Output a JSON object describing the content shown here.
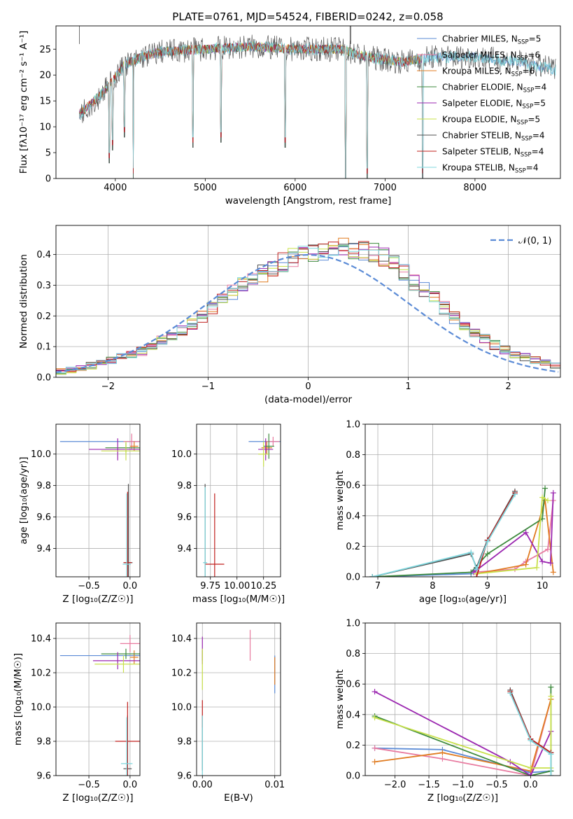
{
  "title": "PLATE=0761, MJD=54524, FIBERID=0242, z=0.058",
  "colors": {
    "chabrier_miles": "#5b8bd6",
    "salpeter_miles": "#e87ba0",
    "kroupa_miles": "#e07b20",
    "chabrier_elodie": "#3d8a3d",
    "salpeter_elodie": "#9b27b0",
    "kroupa_elodie": "#c8e04a",
    "chabrier_stelib": "#505050",
    "salpeter_stelib": "#c0201e",
    "kroupa_stelib": "#7fd7de",
    "normal_curve": "#5b8bd6"
  },
  "chart_data": [
    {
      "id": "spectrum",
      "type": "line",
      "xlabel": "wavelength [Angstrom, rest frame]",
      "ylabel": "Flux [fλ10⁻¹⁷ erg cm⁻² s⁻¹ A⁻¹]",
      "xlim": [
        3340,
        8950
      ],
      "ylim": [
        0,
        29.5
      ],
      "xticks": [
        4000,
        5000,
        6000,
        7000,
        8000
      ],
      "yticks": [
        0,
        5,
        10,
        15,
        20,
        25
      ],
      "legend_position": "top-right",
      "legend": [
        {
          "text": "Chabrier MILES, N",
          "sub": "SSP",
          "suffix": "=5"
        },
        {
          "text": "Salpeter MILES, N",
          "sub": "SSP",
          "suffix": "=6"
        },
        {
          "text": "Kroupa MILES, N",
          "sub": "SSP",
          "suffix": "=6"
        },
        {
          "text": "Chabrier ELODIE, N",
          "sub": "SSP",
          "suffix": "=4"
        },
        {
          "text": "Salpeter ELODIE, N",
          "sub": "SSP",
          "suffix": "=5"
        },
        {
          "text": "Kroupa ELODIE, N",
          "sub": "SSP",
          "suffix": "=5"
        },
        {
          "text": "Chabrier STELIB, N",
          "sub": "SSP",
          "suffix": "=4"
        },
        {
          "text": "Salpeter STELIB, N",
          "sub": "SSP",
          "suffix": "=4"
        },
        {
          "text": "Kroupa STELIB, N",
          "sub": "SSP",
          "suffix": "=4"
        }
      ],
      "continuum": [
        [
          3600,
          12.5
        ],
        [
          3700,
          14
        ],
        [
          3800,
          15.5
        ],
        [
          3900,
          17.5
        ],
        [
          4000,
          19.5
        ],
        [
          4100,
          22
        ],
        [
          4300,
          23.5
        ],
        [
          4500,
          24.5
        ],
        [
          5000,
          25
        ],
        [
          5500,
          25.5
        ],
        [
          6000,
          25
        ],
        [
          6500,
          25
        ],
        [
          6800,
          23.5
        ],
        [
          7000,
          23
        ],
        [
          7200,
          22.5
        ],
        [
          7500,
          23.5
        ],
        [
          8000,
          23.5
        ],
        [
          8500,
          22.5
        ],
        [
          8900,
          21
        ]
      ],
      "absorption_lines": [
        [
          3934,
          3
        ],
        [
          3969,
          5.5
        ],
        [
          4102,
          8
        ],
        [
          4200,
          0
        ],
        [
          4861,
          6
        ],
        [
          5176,
          7
        ],
        [
          5890,
          6
        ],
        [
          6563,
          -4
        ],
        [
          6800,
          0
        ],
        [
          7420,
          0
        ]
      ]
    },
    {
      "id": "residuals",
      "type": "step",
      "xlabel": "(data-model)/error",
      "ylabel": "Normed distribution",
      "xlim": [
        -2.52,
        2.52
      ],
      "ylim": [
        0,
        0.495
      ],
      "xticks": [
        -2,
        -1,
        0,
        1,
        2
      ],
      "xtick_labels": [
        "−2",
        "−1",
        "0",
        "1",
        "2"
      ],
      "yticks": [
        0.0,
        0.1,
        0.2,
        0.3,
        0.4
      ],
      "ytick_labels": [
        "0.0",
        "0.1",
        "0.2",
        "0.3",
        "0.4"
      ],
      "legend_label": "𝒩(0, 1)",
      "legend_position": "top-right",
      "envelope": [
        0.02,
        0.025,
        0.03,
        0.038,
        0.045,
        0.055,
        0.065,
        0.075,
        0.085,
        0.1,
        0.12,
        0.135,
        0.155,
        0.175,
        0.2,
        0.225,
        0.25,
        0.275,
        0.3,
        0.32,
        0.34,
        0.36,
        0.375,
        0.39,
        0.4,
        0.41,
        0.415,
        0.42,
        0.42,
        0.42,
        0.415,
        0.405,
        0.39,
        0.37,
        0.34,
        0.31,
        0.285,
        0.255,
        0.225,
        0.195,
        0.17,
        0.145,
        0.125,
        0.105,
        0.09,
        0.075,
        0.065,
        0.055,
        0.045,
        0.04
      ]
    },
    {
      "id": "age-vs-z",
      "type": "errorbar",
      "xlabel": "Z [log₁₀(Z/Z☉)]",
      "ylabel": "age  [log₁₀(age/yr)]",
      "xlim": [
        -0.9,
        0.12
      ],
      "ylim": [
        9.22,
        10.19
      ],
      "xticks": [
        -0.5,
        0.0
      ],
      "xtick_labels": [
        "−0.5",
        "0.0"
      ],
      "yticks": [
        9.4,
        9.6,
        9.8,
        10.0
      ],
      "yticklabels": [
        "9.4",
        "9.6",
        "9.8",
        "10.0"
      ],
      "points": [
        {
          "c": "chabrier_miles",
          "x": 0.0,
          "xerr": 0.85,
          "y": 10.08,
          "yerr": 0.0
        },
        {
          "c": "salpeter_miles",
          "x": 0.02,
          "xerr": 0.1,
          "y": 10.08,
          "yerr": 0.05
        },
        {
          "c": "kroupa_miles",
          "x": 0.05,
          "xerr": 0.05,
          "y": 10.05,
          "yerr": 0.03
        },
        {
          "c": "chabrier_elodie",
          "x": -0.05,
          "xerr": 0.25,
          "y": 10.04,
          "yerr": 0.03
        },
        {
          "c": "salpeter_elodie",
          "x": -0.15,
          "xerr": 0.35,
          "y": 10.03,
          "yerr": 0.07
        },
        {
          "c": "kroupa_elodie",
          "x": -0.05,
          "xerr": 0.3,
          "y": 10.02,
          "yerr": 0.06
        },
        {
          "c": "chabrier_stelib",
          "x": -0.02,
          "xerr": 0.05,
          "y": 9.31,
          "yerr": 0.5
        },
        {
          "c": "salpeter_stelib",
          "x": -0.03,
          "xerr": 0.05,
          "y": 9.31,
          "yerr": 0.45
        },
        {
          "c": "kroupa_stelib",
          "x": -0.04,
          "xerr": 0.05,
          "y": 9.3,
          "yerr": 0.45
        }
      ]
    },
    {
      "id": "age-vs-mass",
      "type": "errorbar",
      "xlabel": "mass [log₁₀(M/M☉)]",
      "ylabel": "",
      "xlim": [
        9.62,
        10.41
      ],
      "ylim": [
        9.22,
        10.19
      ],
      "xticks": [
        9.75,
        10.0,
        10.25
      ],
      "xtick_labels": [
        "9.75",
        "10.00",
        "10.25"
      ],
      "yticks": [
        9.4,
        9.6,
        9.8,
        10.0
      ],
      "yticklabels": [
        "9.4",
        "9.6",
        "9.8",
        "10.0"
      ],
      "points": [
        {
          "c": "chabrier_miles",
          "x": 10.26,
          "xerr": 0.15,
          "y": 10.08,
          "yerr": 0.0
        },
        {
          "c": "salpeter_miles",
          "x": 10.34,
          "xerr": 0.06,
          "y": 10.08,
          "yerr": 0.03
        },
        {
          "c": "kroupa_miles",
          "x": 10.28,
          "xerr": 0.05,
          "y": 10.04,
          "yerr": 0.04
        },
        {
          "c": "chabrier_elodie",
          "x": 10.3,
          "xerr": 0.05,
          "y": 10.05,
          "yerr": 0.08
        },
        {
          "c": "salpeter_elodie",
          "x": 10.27,
          "xerr": 0.07,
          "y": 10.03,
          "yerr": 0.07
        },
        {
          "c": "kroupa_elodie",
          "x": 10.25,
          "xerr": 0.05,
          "y": 10.0,
          "yerr": 0.08
        },
        {
          "c": "chabrier_stelib",
          "x": 9.7,
          "xerr": 0.01,
          "y": 9.31,
          "yerr": 0.5
        },
        {
          "c": "salpeter_stelib",
          "x": 9.79,
          "xerr": 0.09,
          "y": 9.3,
          "yerr": 0.45
        },
        {
          "c": "kroupa_stelib",
          "x": 9.7,
          "xerr": 0.02,
          "y": 9.31,
          "yerr": 0.48
        }
      ]
    },
    {
      "id": "weight-vs-age",
      "type": "line",
      "xlabel": "age  [log₁₀(age/yr)]",
      "ylabel": "mass weight",
      "xlim": [
        6.77,
        10.33
      ],
      "ylim": [
        0,
        1.0
      ],
      "xticks": [
        7,
        8,
        9,
        10
      ],
      "xtick_labels": [
        "7",
        "8",
        "9",
        "10"
      ],
      "yticks": [
        0.0,
        0.2,
        0.4,
        0.6,
        0.8,
        1.0
      ],
      "ytick_labels": [
        "0.0",
        "0.2",
        "0.4",
        "0.6",
        "0.8",
        "1.0"
      ],
      "series": [
        {
          "c": "chabrier_miles",
          "x": [
            6.9,
            8.7,
            8.8,
            9.0,
            9.5
          ],
          "y": [
            0.0,
            0.02,
            0.06,
            0.24,
            0.55
          ]
        },
        {
          "c": "salpeter_miles",
          "x": [
            8.75,
            9.5,
            9.7,
            10.1,
            10.2
          ],
          "y": [
            0.03,
            0.05,
            0.1,
            0.18,
            0.5
          ]
        },
        {
          "c": "kroupa_miles",
          "x": [
            8.8,
            9.7,
            10.05,
            10.2
          ],
          "y": [
            0.02,
            0.08,
            0.5,
            0.03
          ]
        },
        {
          "c": "chabrier_elodie",
          "x": [
            6.9,
            8.7,
            9.0,
            10.0,
            10.05
          ],
          "y": [
            0.0,
            0.03,
            0.15,
            0.38,
            0.58
          ]
        },
        {
          "c": "salpeter_elodie",
          "x": [
            8.75,
            9.7,
            10.0,
            10.15,
            10.2
          ],
          "y": [
            0.03,
            0.29,
            0.1,
            0.09,
            0.55
          ]
        },
        {
          "c": "kroupa_elodie",
          "x": [
            8.8,
            9.9,
            10.0,
            10.1
          ],
          "y": [
            0.02,
            0.06,
            0.52,
            0.5
          ]
        },
        {
          "c": "chabrier_stelib",
          "x": [
            6.9,
            8.7,
            8.8,
            9.0,
            9.5
          ],
          "y": [
            0.0,
            0.15,
            0.06,
            0.24,
            0.56
          ]
        },
        {
          "c": "salpeter_stelib",
          "x": [
            8.8,
            9.0,
            9.5
          ],
          "y": [
            0.0,
            0.24,
            0.55
          ]
        },
        {
          "c": "kroupa_stelib",
          "x": [
            6.9,
            8.7,
            8.8,
            9.0,
            9.5
          ],
          "y": [
            0.0,
            0.16,
            0.05,
            0.23,
            0.54
          ]
        }
      ]
    },
    {
      "id": "mass-vs-z",
      "type": "errorbar",
      "xlabel": "Z [log₁₀(Z/Z☉)]",
      "ylabel": "mass [log₁₀(M/M☉)]",
      "xlim": [
        -0.9,
        0.12
      ],
      "ylim": [
        9.6,
        10.49
      ],
      "xticks": [
        -0.5,
        0.0
      ],
      "xtick_labels": [
        "−0.5",
        "0.0"
      ],
      "yticks": [
        9.6,
        9.8,
        10.0,
        10.2,
        10.4
      ],
      "ytick_labels": [
        "9.6",
        "9.8",
        "10.0",
        "10.2",
        "10.4"
      ],
      "points": [
        {
          "c": "chabrier_miles",
          "x": 0.0,
          "xerr": 0.85,
          "y": 10.3,
          "yerr": 0.0
        },
        {
          "c": "salpeter_miles",
          "x": 0.0,
          "xerr": 0.12,
          "y": 10.37,
          "yerr": 0.05
        },
        {
          "c": "kroupa_miles",
          "x": 0.05,
          "xerr": 0.05,
          "y": 10.29,
          "yerr": 0.04
        },
        {
          "c": "chabrier_elodie",
          "x": -0.05,
          "xerr": 0.3,
          "y": 10.31,
          "yerr": 0.03
        },
        {
          "c": "salpeter_elodie",
          "x": -0.15,
          "xerr": 0.3,
          "y": 10.27,
          "yerr": 0.05
        },
        {
          "c": "kroupa_elodie",
          "x": -0.08,
          "xerr": 0.35,
          "y": 10.25,
          "yerr": 0.05
        },
        {
          "c": "chabrier_stelib",
          "x": -0.03,
          "xerr": 0.05,
          "y": 9.64,
          "yerr": 0.31
        },
        {
          "c": "salpeter_stelib",
          "x": -0.03,
          "xerr": 0.15,
          "y": 9.8,
          "yerr": 0.23
        },
        {
          "c": "kroupa_stelib",
          "x": -0.04,
          "xerr": 0.07,
          "y": 9.67,
          "yerr": 0.27
        }
      ]
    },
    {
      "id": "mass-vs-ebv",
      "type": "errorbar",
      "xlabel": "E(B-V)",
      "ylabel": "",
      "xlim": [
        -0.0008,
        0.0108
      ],
      "ylim": [
        9.6,
        10.49
      ],
      "xticks": [
        0.0,
        0.01
      ],
      "xtick_labels": [
        "0.00",
        "0.01"
      ],
      "yticks": [
        9.6,
        9.8,
        10.0,
        10.2,
        10.4
      ],
      "ytick_labels": [
        "9.6",
        "9.8",
        "10.0",
        "10.2",
        "10.4"
      ],
      "points": [
        {
          "c": "chabrier_miles",
          "x": 0.01,
          "xerr": 0.0,
          "y": 10.19,
          "yerr": 0.11
        },
        {
          "c": "salpeter_miles",
          "x": 0.0066,
          "xerr": 0.0,
          "y": 10.36,
          "yerr": 0.09
        },
        {
          "c": "kroupa_miles",
          "x": 0.01,
          "xerr": 0.0,
          "y": 10.21,
          "yerr": 0.08
        },
        {
          "c": "chabrier_elodie",
          "x": 0.0,
          "xerr": 0.0,
          "y": 10.3,
          "yerr": 0.03
        },
        {
          "c": "salpeter_elodie",
          "x": 0.0,
          "xerr": 0.0,
          "y": 10.33,
          "yerr": 0.08
        },
        {
          "c": "kroupa_elodie",
          "x": 0.0,
          "xerr": 0.0,
          "y": 10.22,
          "yerr": 0.12
        },
        {
          "c": "chabrier_stelib",
          "x": 0.0,
          "xerr": 0.0,
          "y": 9.79,
          "yerr": 0.16
        },
        {
          "c": "salpeter_stelib",
          "x": 0.0,
          "xerr": 0.0,
          "y": 9.96,
          "yerr": 0.08
        },
        {
          "c": "kroupa_stelib",
          "x": 0.0,
          "xerr": 0.0,
          "y": 9.67,
          "yerr": 0.28
        }
      ]
    },
    {
      "id": "weight-vs-z",
      "type": "line",
      "xlabel": "Z [log₁₀(Z/Z☉)]",
      "ylabel": "mass weight",
      "xlim": [
        -2.44,
        0.44
      ],
      "ylim": [
        0,
        1.0
      ],
      "xticks": [
        -2.0,
        -1.5,
        -1.0,
        -0.5,
        0.0
      ],
      "xtick_labels": [
        "−2.0",
        "−1.5",
        "−1.0",
        "−0.5",
        "0.0"
      ],
      "yticks": [
        0.0,
        0.2,
        0.4,
        0.6,
        0.8,
        1.0
      ],
      "ytick_labels": [
        "0.0",
        "0.2",
        "0.4",
        "0.6",
        "0.8",
        "1.0"
      ],
      "series": [
        {
          "c": "chabrier_miles",
          "x": [
            -2.3,
            -1.3,
            0.0,
            0.3
          ],
          "y": [
            0.18,
            0.17,
            0.02,
            0.03
          ]
        },
        {
          "c": "salpeter_miles",
          "x": [
            -2.3,
            -1.3,
            0.0,
            0.3
          ],
          "y": [
            0.18,
            0.11,
            0.0,
            0.5
          ]
        },
        {
          "c": "kroupa_miles",
          "x": [
            -2.3,
            -1.3,
            0.0,
            0.3
          ],
          "y": [
            0.09,
            0.15,
            0.03,
            0.5
          ]
        },
        {
          "c": "chabrier_elodie",
          "x": [
            -2.3,
            0.0,
            0.3,
            0.3
          ],
          "y": [
            0.39,
            0.0,
            0.03,
            0.58
          ]
        },
        {
          "c": "salpeter_elodie",
          "x": [
            -2.3,
            -0.3,
            0.0,
            0.3
          ],
          "y": [
            0.55,
            0.09,
            0.0,
            0.29
          ]
        },
        {
          "c": "kroupa_elodie",
          "x": [
            -2.3,
            0.0,
            0.3,
            0.3
          ],
          "y": [
            0.38,
            0.05,
            0.05,
            0.52
          ]
        },
        {
          "c": "chabrier_stelib",
          "x": [
            -0.3,
            0.0,
            0.3,
            0.3
          ],
          "y": [
            0.56,
            0.24,
            0.15,
            0.0
          ]
        },
        {
          "c": "salpeter_stelib",
          "x": [
            -0.3,
            0.0,
            0.3
          ],
          "y": [
            0.55,
            0.24,
            0.15
          ]
        },
        {
          "c": "kroupa_stelib",
          "x": [
            -0.3,
            0.0,
            0.3,
            0.3
          ],
          "y": [
            0.54,
            0.23,
            0.14,
            0.0
          ]
        }
      ]
    }
  ]
}
